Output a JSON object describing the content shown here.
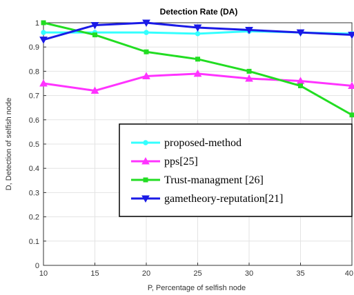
{
  "chart_data": {
    "type": "line",
    "title": "Detection Rate (DA)",
    "xlabel": "P, Percentage of selfish node",
    "ylabel": "D, Detection of selfish node",
    "x": [
      10,
      15,
      20,
      25,
      30,
      35,
      40
    ],
    "xlim": [
      10,
      40
    ],
    "ylim": [
      0,
      1
    ],
    "xticks": [
      "10",
      "15",
      "20",
      "25",
      "30",
      "35",
      "40"
    ],
    "yticks": [
      "0",
      "0.1",
      "0.2",
      "0.3",
      "0.4",
      "0.5",
      "0.6",
      "0.7",
      "0.8",
      "0.9",
      "1"
    ],
    "grid": true,
    "legend_position": "lower-right",
    "series": [
      {
        "name": "proposed-method",
        "color": "#33ffff",
        "marker": "circle",
        "values": [
          0.96,
          0.96,
          0.96,
          0.955,
          0.965,
          0.96,
          0.955
        ]
      },
      {
        "name": "pps[25]",
        "color": "#ff33ff",
        "marker": "triangle-up",
        "values": [
          0.75,
          0.72,
          0.78,
          0.79,
          0.77,
          0.76,
          0.74
        ]
      },
      {
        "name": "Trust-managment [26]",
        "color": "#22dd22",
        "marker": "square",
        "values": [
          1.0,
          0.95,
          0.88,
          0.85,
          0.8,
          0.74,
          0.62
        ]
      },
      {
        "name": "gametheory-reputation[21]",
        "color": "#1a1ae6",
        "marker": "triangle-down",
        "values": [
          0.93,
          0.99,
          1.0,
          0.98,
          0.97,
          0.96,
          0.95
        ]
      }
    ]
  }
}
